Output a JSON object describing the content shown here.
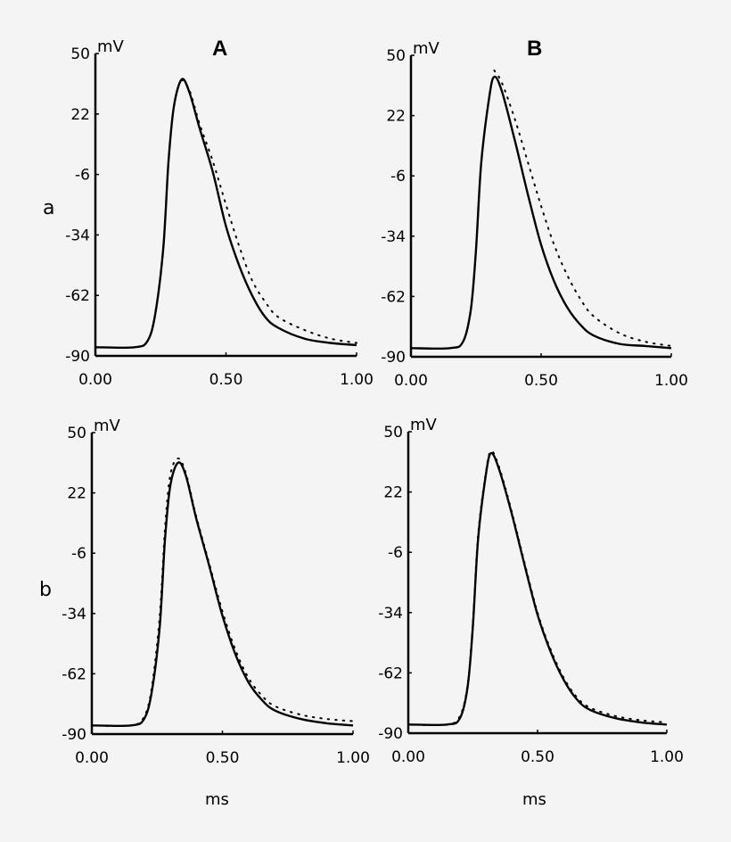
{
  "figure": {
    "column_labels": [
      "A",
      "B"
    ],
    "row_labels": [
      "a",
      "b"
    ],
    "x_axis_label": "ms",
    "y_axis_unit": "mV"
  },
  "chart_data": [
    {
      "id": "Aa",
      "type": "line",
      "column": "A",
      "row": "a",
      "title": "A",
      "xlabel": "",
      "ylabel": "mV",
      "xlim": [
        0.0,
        1.0
      ],
      "ylim": [
        -90,
        50
      ],
      "xticks": [
        "0.00",
        "0.50",
        "1.00"
      ],
      "yticks": [
        "50",
        "22",
        "-6",
        "-34",
        "-62",
        "-90"
      ],
      "grid": false,
      "legend": null,
      "series": [
        {
          "name": "solid",
          "style": "solid",
          "x": [
            0.0,
            0.15,
            0.2,
            0.23,
            0.26,
            0.28,
            0.3,
            0.33,
            0.36,
            0.4,
            0.45,
            0.5,
            0.55,
            0.6,
            0.65,
            0.7,
            0.8,
            0.9,
            1.0
          ],
          "y": [
            -86,
            -86,
            -83,
            -70,
            -40,
            0,
            25,
            38,
            32,
            15,
            -5,
            -30,
            -48,
            -62,
            -72,
            -77,
            -82,
            -84,
            -85
          ]
        },
        {
          "name": "dotted",
          "style": "dotted",
          "x": [
            0.33,
            0.36,
            0.4,
            0.45,
            0.5,
            0.55,
            0.6,
            0.65,
            0.7,
            0.8,
            0.9,
            1.0
          ],
          "y": [
            38,
            33,
            17,
            0,
            -20,
            -39,
            -55,
            -65,
            -72,
            -78,
            -82,
            -84
          ]
        }
      ]
    },
    {
      "id": "Ba",
      "type": "line",
      "column": "B",
      "row": "a",
      "title": "B",
      "xlabel": "",
      "ylabel": "mV",
      "xlim": [
        0.0,
        1.0
      ],
      "ylim": [
        -90,
        50
      ],
      "xticks": [
        "0.00",
        "0.50",
        "1.00"
      ],
      "yticks": [
        "50",
        "22",
        "-6",
        "-34",
        "-62",
        "-90"
      ],
      "grid": false,
      "legend": null,
      "series": [
        {
          "name": "solid",
          "style": "solid",
          "x": [
            0.0,
            0.15,
            0.2,
            0.23,
            0.25,
            0.27,
            0.3,
            0.32,
            0.35,
            0.4,
            0.45,
            0.5,
            0.55,
            0.6,
            0.65,
            0.7,
            0.8,
            0.9,
            1.0
          ],
          "y": [
            -86,
            -86,
            -83,
            -68,
            -40,
            0,
            30,
            40,
            33,
            10,
            -15,
            -38,
            -55,
            -67,
            -75,
            -80,
            -84,
            -85,
            -86
          ]
        },
        {
          "name": "dotted",
          "style": "dotted",
          "x": [
            0.32,
            0.35,
            0.4,
            0.45,
            0.5,
            0.55,
            0.6,
            0.65,
            0.7,
            0.8,
            0.9,
            1.0
          ],
          "y": [
            43,
            37,
            20,
            0,
            -20,
            -38,
            -52,
            -63,
            -71,
            -79,
            -83,
            -85
          ]
        }
      ]
    },
    {
      "id": "Ab",
      "type": "line",
      "column": "A",
      "row": "b",
      "title": "",
      "xlabel": "ms",
      "ylabel": "mV",
      "xlim": [
        0.0,
        1.0
      ],
      "ylim": [
        -90,
        50
      ],
      "xticks": [
        "0.00",
        "0.50",
        "1.00"
      ],
      "yticks": [
        "50",
        "22",
        "-6",
        "-34",
        "-62",
        "-90"
      ],
      "grid": false,
      "legend": null,
      "series": [
        {
          "name": "solid",
          "style": "solid",
          "x": [
            0.0,
            0.15,
            0.2,
            0.23,
            0.26,
            0.28,
            0.3,
            0.33,
            0.36,
            0.4,
            0.45,
            0.5,
            0.55,
            0.6,
            0.65,
            0.7,
            0.8,
            0.9,
            1.0
          ],
          "y": [
            -86,
            -86,
            -83,
            -70,
            -40,
            0,
            25,
            36,
            30,
            10,
            -12,
            -35,
            -53,
            -66,
            -74,
            -79,
            -83,
            -85,
            -86
          ]
        },
        {
          "name": "dotted",
          "style": "dotted",
          "x": [
            0.0,
            0.15,
            0.2,
            0.23,
            0.26,
            0.28,
            0.3,
            0.33,
            0.36,
            0.4,
            0.45,
            0.5,
            0.55,
            0.6,
            0.65,
            0.7,
            0.8,
            0.9,
            1.0
          ],
          "y": [
            -86,
            -86,
            -82,
            -68,
            -35,
            5,
            30,
            38,
            31,
            11,
            -11,
            -33,
            -51,
            -64,
            -72,
            -77,
            -81,
            -83,
            -84
          ]
        }
      ]
    },
    {
      "id": "Bb",
      "type": "line",
      "column": "B",
      "row": "b",
      "title": "",
      "xlabel": "ms",
      "ylabel": "mV",
      "xlim": [
        0.0,
        1.0
      ],
      "ylim": [
        -90,
        50
      ],
      "xticks": [
        "0.00",
        "0.50",
        "1.00"
      ],
      "yticks": [
        "50",
        "22",
        "-6",
        "-34",
        "-62",
        "-90"
      ],
      "grid": false,
      "legend": null,
      "series": [
        {
          "name": "solid",
          "style": "solid",
          "x": [
            0.0,
            0.15,
            0.2,
            0.23,
            0.25,
            0.27,
            0.3,
            0.32,
            0.35,
            0.4,
            0.45,
            0.5,
            0.55,
            0.6,
            0.65,
            0.7,
            0.8,
            0.9,
            1.0
          ],
          "y": [
            -86,
            -86,
            -83,
            -68,
            -40,
            0,
            30,
            40,
            33,
            12,
            -12,
            -35,
            -52,
            -65,
            -74,
            -79,
            -83,
            -85,
            -86
          ]
        },
        {
          "name": "dotted",
          "style": "dotted",
          "x": [
            0.0,
            0.15,
            0.2,
            0.23,
            0.25,
            0.27,
            0.3,
            0.32,
            0.35,
            0.4,
            0.45,
            0.5,
            0.55,
            0.6,
            0.65,
            0.7,
            0.8,
            0.9,
            1.0
          ],
          "y": [
            -86,
            -86,
            -82,
            -67,
            -38,
            2,
            31,
            41,
            34,
            13,
            -11,
            -34,
            -51,
            -64,
            -73,
            -78,
            -82,
            -84,
            -85
          ]
        }
      ]
    }
  ]
}
